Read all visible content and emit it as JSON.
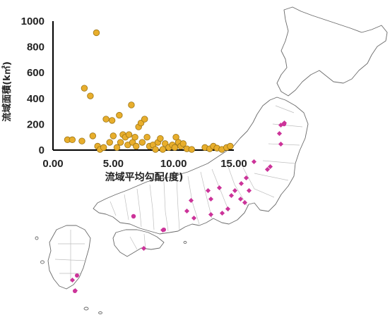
{
  "chart_data": {
    "type": "scatter",
    "xlabel": "流域平均勾配(度)",
    "ylabel": "流域面積(k㎡)",
    "xlim": [
      0,
      15
    ],
    "ylim": [
      0,
      1000
    ],
    "x_ticks": [
      "0.00",
      "5.00",
      "10.00",
      "15.00"
    ],
    "y_ticks": [
      "0",
      "200",
      "400",
      "600",
      "800",
      "1000"
    ],
    "grid": false,
    "legend": "none",
    "marker_color": "#E8AE2C",
    "marker_edge_color": "#9B7416",
    "points": [
      {
        "x": 1.2,
        "y": 80
      },
      {
        "x": 1.6,
        "y": 80
      },
      {
        "x": 2.4,
        "y": 70
      },
      {
        "x": 2.6,
        "y": 480
      },
      {
        "x": 3.1,
        "y": 420
      },
      {
        "x": 3.3,
        "y": 110
      },
      {
        "x": 3.6,
        "y": 910
      },
      {
        "x": 3.7,
        "y": 30
      },
      {
        "x": 3.9,
        "y": 5
      },
      {
        "x": 4.2,
        "y": 20
      },
      {
        "x": 4.4,
        "y": 240
      },
      {
        "x": 4.7,
        "y": 60
      },
      {
        "x": 4.9,
        "y": 230
      },
      {
        "x": 5.0,
        "y": 110
      },
      {
        "x": 5.3,
        "y": 20
      },
      {
        "x": 5.5,
        "y": 270
      },
      {
        "x": 5.6,
        "y": 60
      },
      {
        "x": 5.8,
        "y": 120
      },
      {
        "x": 6.0,
        "y": 100
      },
      {
        "x": 6.2,
        "y": 40
      },
      {
        "x": 6.3,
        "y": 120
      },
      {
        "x": 6.5,
        "y": 350
      },
      {
        "x": 6.6,
        "y": 60
      },
      {
        "x": 6.8,
        "y": 100
      },
      {
        "x": 6.9,
        "y": 30
      },
      {
        "x": 7.1,
        "y": 180
      },
      {
        "x": 7.3,
        "y": 210
      },
      {
        "x": 7.4,
        "y": 60
      },
      {
        "x": 7.6,
        "y": 240
      },
      {
        "x": 7.8,
        "y": 100
      },
      {
        "x": 8.0,
        "y": 30
      },
      {
        "x": 8.3,
        "y": 40
      },
      {
        "x": 8.5,
        "y": 5
      },
      {
        "x": 8.7,
        "y": 60
      },
      {
        "x": 8.9,
        "y": 90
      },
      {
        "x": 9.1,
        "y": 5
      },
      {
        "x": 9.3,
        "y": 50
      },
      {
        "x": 9.6,
        "y": 20
      },
      {
        "x": 9.9,
        "y": 40
      },
      {
        "x": 10.1,
        "y": 20
      },
      {
        "x": 10.2,
        "y": 100
      },
      {
        "x": 10.4,
        "y": 60
      },
      {
        "x": 10.6,
        "y": 30
      },
      {
        "x": 10.8,
        "y": 50
      },
      {
        "x": 11.1,
        "y": 10
      },
      {
        "x": 11.5,
        "y": 5
      },
      {
        "x": 12.6,
        "y": 20
      },
      {
        "x": 13.0,
        "y": 10
      },
      {
        "x": 13.3,
        "y": 30
      },
      {
        "x": 13.6,
        "y": 15
      },
      {
        "x": 14.0,
        "y": 5
      },
      {
        "x": 14.4,
        "y": 20
      },
      {
        "x": 14.7,
        "y": 30
      }
    ]
  },
  "map": {
    "background_color": "#ffffff",
    "border_color": "#bfbfbf",
    "coast_color": "#6a6a6a",
    "marker_color": "#CC3399"
  }
}
